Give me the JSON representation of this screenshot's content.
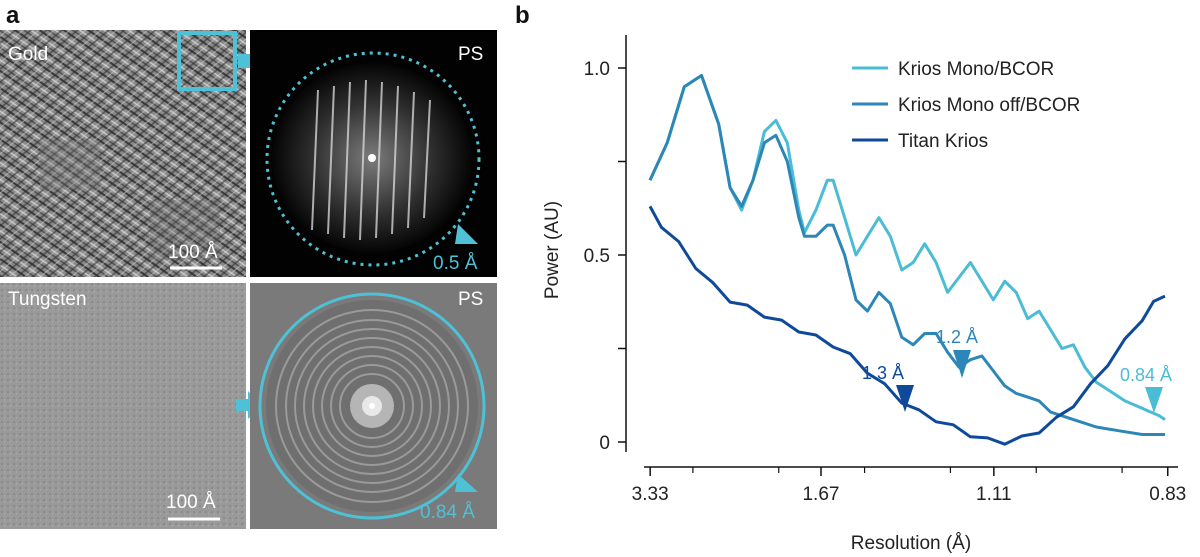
{
  "figure": {
    "panel_a": {
      "letter": "a",
      "gold_label": "Gold",
      "tungsten_label": "Tungsten",
      "ps_label_top": "PS",
      "ps_label_bottom": "PS",
      "scalebar_top": "100 Å",
      "scalebar_bottom": "100 Å",
      "ps_top_resolution": "0.5 Å",
      "ps_bottom_resolution": "0.84 Å"
    },
    "panel_b": {
      "letter": "b",
      "annotation_13": "1.3 Å",
      "annotation_12": "1.2 Å",
      "annotation_084": "0.84 Å"
    },
    "colors": {
      "mono_bcor": "#4bbcd6",
      "mono_off_bcor": "#2c87b8",
      "titan": "#0f4a9a",
      "accent": "#4fc1d6"
    }
  },
  "chart_data": {
    "type": "line",
    "xlabel": "Resolution (Å)",
    "ylabel": "Power (AU)",
    "x_ticks": [
      "3.33",
      "1.67",
      "1.11",
      "0.83"
    ],
    "y_ticks": [
      "0",
      "0.5",
      "1.0"
    ],
    "ylim": [
      0,
      1.05
    ],
    "x_domain_inverse_angstrom": [
      0.3,
      1.2
    ],
    "legend_position": "top-right",
    "series": [
      {
        "name": "Krios Mono/BCOR",
        "points": [
          [
            0.3,
            0.7
          ],
          [
            0.33,
            0.8
          ],
          [
            0.36,
            0.95
          ],
          [
            0.39,
            0.98
          ],
          [
            0.42,
            0.85
          ],
          [
            0.44,
            0.68
          ],
          [
            0.46,
            0.62
          ],
          [
            0.48,
            0.7
          ],
          [
            0.5,
            0.83
          ],
          [
            0.52,
            0.86
          ],
          [
            0.54,
            0.8
          ],
          [
            0.56,
            0.62
          ],
          [
            0.57,
            0.56
          ],
          [
            0.59,
            0.62
          ],
          [
            0.61,
            0.7
          ],
          [
            0.62,
            0.7
          ],
          [
            0.64,
            0.6
          ],
          [
            0.66,
            0.5
          ],
          [
            0.68,
            0.55
          ],
          [
            0.7,
            0.6
          ],
          [
            0.72,
            0.55
          ],
          [
            0.74,
            0.46
          ],
          [
            0.76,
            0.48
          ],
          [
            0.78,
            0.53
          ],
          [
            0.8,
            0.48
          ],
          [
            0.82,
            0.4
          ],
          [
            0.84,
            0.44
          ],
          [
            0.86,
            0.48
          ],
          [
            0.88,
            0.43
          ],
          [
            0.9,
            0.38
          ],
          [
            0.92,
            0.43
          ],
          [
            0.94,
            0.4
          ],
          [
            0.96,
            0.33
          ],
          [
            0.98,
            0.35
          ],
          [
            1.0,
            0.3
          ],
          [
            1.02,
            0.25
          ],
          [
            1.04,
            0.26
          ],
          [
            1.06,
            0.2
          ],
          [
            1.08,
            0.16
          ],
          [
            1.1,
            0.14
          ],
          [
            1.13,
            0.11
          ],
          [
            1.16,
            0.09
          ],
          [
            1.19,
            0.07
          ],
          [
            1.2,
            0.06
          ]
        ]
      },
      {
        "name": "Krios Mono off/BCOR",
        "points": [
          [
            0.3,
            0.7
          ],
          [
            0.33,
            0.8
          ],
          [
            0.36,
            0.95
          ],
          [
            0.39,
            0.98
          ],
          [
            0.42,
            0.85
          ],
          [
            0.44,
            0.68
          ],
          [
            0.46,
            0.63
          ],
          [
            0.48,
            0.7
          ],
          [
            0.5,
            0.8
          ],
          [
            0.52,
            0.82
          ],
          [
            0.54,
            0.75
          ],
          [
            0.56,
            0.6
          ],
          [
            0.57,
            0.55
          ],
          [
            0.59,
            0.55
          ],
          [
            0.61,
            0.58
          ],
          [
            0.62,
            0.58
          ],
          [
            0.64,
            0.5
          ],
          [
            0.66,
            0.38
          ],
          [
            0.68,
            0.35
          ],
          [
            0.7,
            0.4
          ],
          [
            0.72,
            0.37
          ],
          [
            0.74,
            0.28
          ],
          [
            0.76,
            0.26
          ],
          [
            0.78,
            0.29
          ],
          [
            0.8,
            0.29
          ],
          [
            0.82,
            0.24
          ],
          [
            0.84,
            0.2
          ],
          [
            0.86,
            0.22
          ],
          [
            0.88,
            0.23
          ],
          [
            0.9,
            0.19
          ],
          [
            0.92,
            0.15
          ],
          [
            0.94,
            0.13
          ],
          [
            0.96,
            0.12
          ],
          [
            0.98,
            0.11
          ],
          [
            1.0,
            0.08
          ],
          [
            1.04,
            0.06
          ],
          [
            1.08,
            0.04
          ],
          [
            1.12,
            0.03
          ],
          [
            1.16,
            0.02
          ],
          [
            1.2,
            0.02
          ]
        ]
      },
      {
        "name": "Titan Krios",
        "points": [
          [
            0.3,
            0.63
          ],
          [
            0.32,
            0.58
          ],
          [
            0.35,
            0.53
          ],
          [
            0.38,
            0.47
          ],
          [
            0.41,
            0.42
          ],
          [
            0.44,
            0.38
          ],
          [
            0.47,
            0.36
          ],
          [
            0.5,
            0.34
          ],
          [
            0.53,
            0.32
          ],
          [
            0.56,
            0.3
          ],
          [
            0.59,
            0.28
          ],
          [
            0.62,
            0.26
          ],
          [
            0.65,
            0.23
          ],
          [
            0.68,
            0.19
          ],
          [
            0.71,
            0.15
          ],
          [
            0.74,
            0.11
          ],
          [
            0.77,
            0.08
          ],
          [
            0.8,
            0.06
          ],
          [
            0.83,
            0.04
          ],
          [
            0.86,
            0.02
          ],
          [
            0.89,
            0.005
          ],
          [
            0.92,
            0.0
          ],
          [
            0.95,
            0.01
          ],
          [
            0.98,
            0.03
          ],
          [
            1.01,
            0.06
          ],
          [
            1.04,
            0.1
          ],
          [
            1.07,
            0.15
          ],
          [
            1.1,
            0.21
          ],
          [
            1.13,
            0.27
          ],
          [
            1.16,
            0.33
          ],
          [
            1.18,
            0.37
          ],
          [
            1.2,
            0.39
          ]
        ]
      }
    ]
  }
}
